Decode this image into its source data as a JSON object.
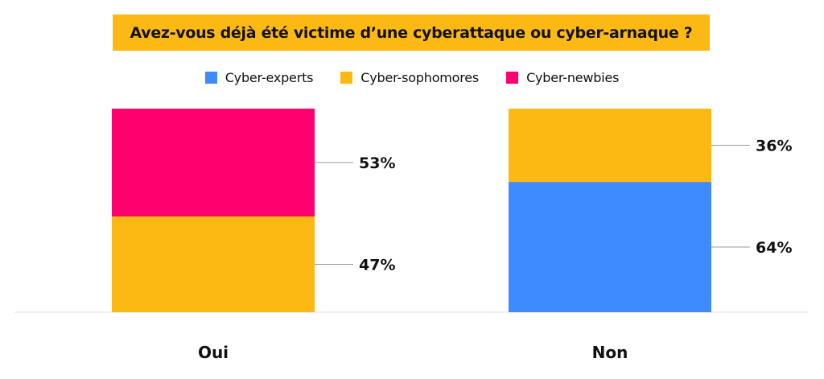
{
  "chart_data": {
    "type": "bar",
    "stacked": true,
    "title": "Avez-vous déjà été victime d’une cyberattaque ou cyber-arnaque ?",
    "categories": [
      "Oui",
      "Non"
    ],
    "series": [
      {
        "name": "Cyber-experts",
        "color": "#3d8bff",
        "values": [
          0,
          64
        ]
      },
      {
        "name": "Cyber-sophomores",
        "color": "#fdb913",
        "values": [
          47,
          36
        ]
      },
      {
        "name": "Cyber-newbies",
        "color": "#ff006e",
        "values": [
          53,
          0
        ]
      }
    ],
    "value_labels": [
      "53%",
      "47%",
      "36%",
      "64%"
    ],
    "ylim": [
      0,
      100
    ],
    "legend_position": "top",
    "grid": false
  }
}
